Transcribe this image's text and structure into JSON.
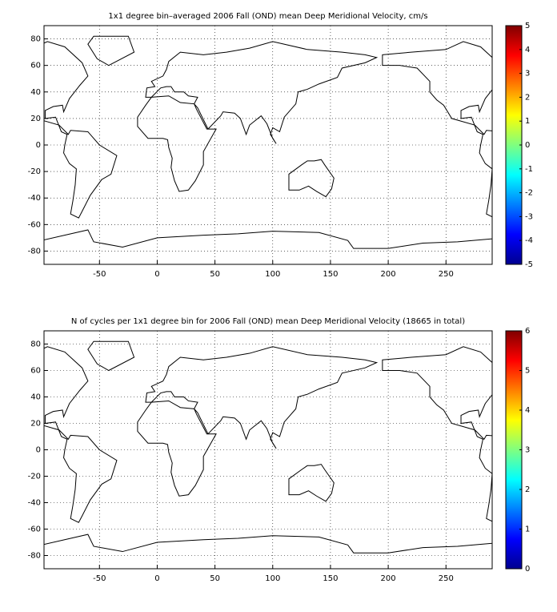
{
  "chart_data": [
    {
      "type": "heatmap",
      "title": "1x1 degree bin–averaged 2006 Fall (OND) mean Deep Meridional Velocity, cm/s",
      "xlim": [
        -98,
        290
      ],
      "ylim": [
        -90,
        90
      ],
      "xticks": [
        -50,
        0,
        50,
        100,
        150,
        200,
        250
      ],
      "yticks": [
        -80,
        -60,
        -40,
        -20,
        0,
        20,
        40,
        60,
        80
      ],
      "grid": true,
      "colorbar": {
        "lim": [
          -5,
          5
        ],
        "ticks": [
          -5,
          -4,
          -3,
          -2,
          -1,
          0,
          1,
          2,
          3,
          4,
          5
        ]
      }
    },
    {
      "type": "heatmap",
      "title": "N of cycles per 1x1 degree bin for 2006 Fall (OND) mean Deep Meridional Velocity (18665 in total)",
      "xlim": [
        -98,
        290
      ],
      "ylim": [
        -90,
        90
      ],
      "xticks": [
        -50,
        0,
        50,
        100,
        150,
        200,
        250
      ],
      "yticks": [
        -80,
        -60,
        -40,
        -20,
        0,
        20,
        40,
        60,
        80
      ],
      "grid": true,
      "colorbar": {
        "lim": [
          0,
          6
        ],
        "ticks": [
          0,
          1,
          2,
          3,
          4,
          5,
          6
        ]
      }
    }
  ]
}
